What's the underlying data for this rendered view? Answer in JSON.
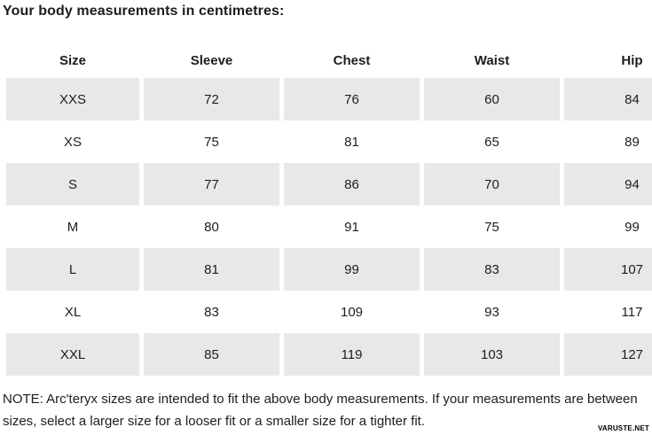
{
  "title": "Your body measurements in centimetres:",
  "table": {
    "headers": [
      "Size",
      "Sleeve",
      "Chest",
      "Waist",
      "Hip"
    ],
    "rows": [
      {
        "size": "XXS",
        "sleeve": "72",
        "chest": "76",
        "waist": "60",
        "hip": "84"
      },
      {
        "size": "XS",
        "sleeve": "75",
        "chest": "81",
        "waist": "65",
        "hip": "89"
      },
      {
        "size": "S",
        "sleeve": "77",
        "chest": "86",
        "waist": "70",
        "hip": "94"
      },
      {
        "size": "M",
        "sleeve": "80",
        "chest": "91",
        "waist": "75",
        "hip": "99"
      },
      {
        "size": "L",
        "sleeve": "81",
        "chest": "99",
        "waist": "83",
        "hip": "107"
      },
      {
        "size": "XL",
        "sleeve": "83",
        "chest": "109",
        "waist": "93",
        "hip": "117"
      },
      {
        "size": "XXL",
        "sleeve": "85",
        "chest": "119",
        "waist": "103",
        "hip": "127"
      }
    ]
  },
  "note": "NOTE: Arc'teryx sizes are intended to fit the above body measurements. If your measurements are between sizes, select a larger size for a looser fit or a smaller size for a tighter fit.",
  "watermark": "VARUSTE.NET",
  "colors": {
    "row_shaded": "#e8e8e8",
    "text": "#1d1d1d",
    "background": "#ffffff"
  }
}
